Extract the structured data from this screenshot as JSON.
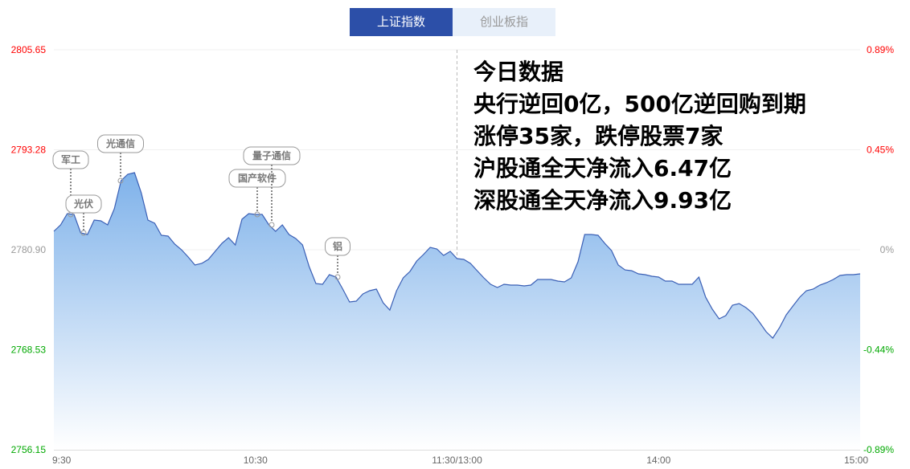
{
  "tabs": [
    {
      "label": "上证指数",
      "active": true
    },
    {
      "label": "创业板指",
      "active": false
    }
  ],
  "info_lines": [
    "今日数据",
    "央行逆回0亿，500亿逆回购到期",
    "涨停35家，跌停股票7家",
    "沪股通全天净流入6.47亿",
    "深股通全天净流入9.93亿"
  ],
  "chart_data": {
    "type": "area",
    "title": "",
    "prev_close": 2780.9,
    "ylim": [
      2756.15,
      2805.65
    ],
    "y_ticks_left": [
      "2805.65",
      "2793.28",
      "2780.90",
      "2768.53",
      "2756.15"
    ],
    "y_ticks_right": [
      "0.89%",
      "0.45%",
      "0%",
      "-0.44%",
      "-0.89%"
    ],
    "x_ticks": [
      "9:30",
      "10:30",
      "11:30/13:00",
      "14:00",
      "15:00"
    ],
    "interval_minutes": 2,
    "grid": true,
    "colors": {
      "up": "#ff0000",
      "down": "#00a800",
      "flat": "#999999",
      "line": "#3a5fb5",
      "fill_top": "#7fb2ea",
      "fill_bottom": "#ffffff"
    },
    "values": [
      2783.19,
      2783.98,
      2785.37,
      2785.27,
      2782.99,
      2782.79,
      2784.58,
      2784.48,
      2783.98,
      2785.97,
      2789.45,
      2790.24,
      2790.44,
      2787.96,
      2784.58,
      2784.18,
      2782.69,
      2782.59,
      2781.6,
      2780.9,
      2780.0,
      2779.01,
      2779.21,
      2779.71,
      2780.7,
      2781.69,
      2782.39,
      2781.5,
      2784.68,
      2785.37,
      2785.27,
      2785.27,
      2783.98,
      2783.19,
      2783.98,
      2782.79,
      2782.29,
      2781.5,
      2778.81,
      2776.72,
      2776.63,
      2777.82,
      2777.52,
      2776.03,
      2774.44,
      2774.54,
      2775.43,
      2775.83,
      2776.03,
      2774.34,
      2773.44,
      2775.83,
      2777.42,
      2778.22,
      2779.51,
      2780.3,
      2781.2,
      2781.0,
      2780.2,
      2780.7,
      2779.81,
      2779.71,
      2779.21,
      2778.31,
      2777.42,
      2776.63,
      2776.23,
      2776.63,
      2776.53,
      2776.53,
      2776.43,
      2776.53,
      2777.22,
      2777.22,
      2777.22,
      2777.02,
      2776.92,
      2777.42,
      2779.41,
      2782.79,
      2782.79,
      2782.69,
      2781.69,
      2780.8,
      2779.01,
      2778.41,
      2778.31,
      2777.92,
      2777.82,
      2777.62,
      2777.52,
      2777.02,
      2777.02,
      2776.63,
      2776.63,
      2776.63,
      2777.52,
      2775.03,
      2773.54,
      2772.35,
      2772.75,
      2774.04,
      2774.24,
      2773.74,
      2773.05,
      2771.95,
      2770.76,
      2769.97,
      2771.26,
      2772.85,
      2773.94,
      2775.03,
      2775.83,
      2776.03,
      2776.53,
      2776.82,
      2777.22,
      2777.72,
      2777.82,
      2777.82,
      2777.92
    ],
    "annotations": [
      {
        "label": "军工",
        "index": 3
      },
      {
        "label": "光伏",
        "index": 4
      },
      {
        "label": "光通信",
        "index": 10
      },
      {
        "label": "国产软件",
        "index": 30
      },
      {
        "label": "量子通信",
        "index": 32
      },
      {
        "label": "铝",
        "index": 42
      }
    ]
  }
}
